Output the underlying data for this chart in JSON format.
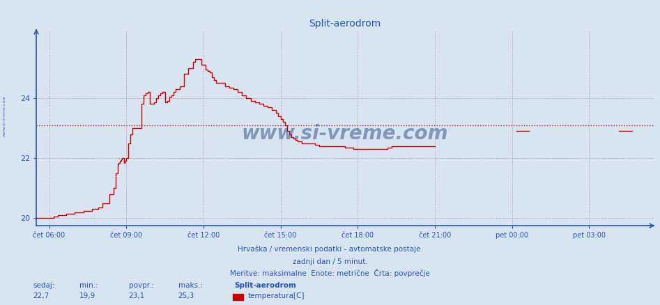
{
  "title": "Split-aerodrom",
  "title_color": "#2255bb",
  "title_fontsize": 10,
  "bg_color": "#d8e4f0",
  "plot_bg_color": "#d8e4f0",
  "line_color": "#cc0000",
  "avg_line_color": "#aa0000",
  "avg_value": 23.1,
  "ylim": [
    19.75,
    26.25
  ],
  "yticks": [
    20,
    22,
    24
  ],
  "axis_color": "#2255bb",
  "grid_color": "#bb7777",
  "footer_color": "#2255bb",
  "sedaj": "22,7",
  "min_val": "19,9",
  "povpr": "23,1",
  "maks": "25,3",
  "station_name": "Split-aerodrom",
  "series_label": "temperatura[C]",
  "footer_line1": "Hrvaška / vremenski podatki - avtomatske postaje.",
  "footer_line2": "zadnji dan / 5 minut.",
  "footer_line3": "Meritve: maksimalne  Enote: metrične  Črta: povprečje",
  "xticklabels": [
    "čet 06:00",
    "čet 09:00",
    "čet 12:00",
    "čet 15:00",
    "čet 18:00",
    "čet 21:00",
    "pet 00:00",
    "pet 03:00"
  ],
  "xtick_minutes": [
    0,
    180,
    360,
    540,
    720,
    900,
    1080,
    1260
  ],
  "xlim": [
    -30,
    1410
  ],
  "steps": [
    [
      -30,
      20.0
    ],
    [
      0,
      20.0
    ],
    [
      10,
      20.05
    ],
    [
      20,
      20.1
    ],
    [
      40,
      20.15
    ],
    [
      60,
      20.2
    ],
    [
      80,
      20.25
    ],
    [
      100,
      20.3
    ],
    [
      115,
      20.35
    ],
    [
      125,
      20.5
    ],
    [
      140,
      20.8
    ],
    [
      150,
      21.0
    ],
    [
      155,
      21.5
    ],
    [
      160,
      21.8
    ],
    [
      162,
      21.85
    ],
    [
      165,
      21.9
    ],
    [
      168,
      21.95
    ],
    [
      170,
      22.0
    ],
    [
      175,
      21.85
    ],
    [
      177,
      21.9
    ],
    [
      180,
      22.0
    ],
    [
      185,
      22.5
    ],
    [
      190,
      22.8
    ],
    [
      195,
      23.0
    ],
    [
      200,
      23.0
    ],
    [
      210,
      23.0
    ],
    [
      215,
      23.8
    ],
    [
      220,
      24.1
    ],
    [
      225,
      24.15
    ],
    [
      230,
      24.2
    ],
    [
      235,
      23.8
    ],
    [
      240,
      23.8
    ],
    [
      245,
      23.85
    ],
    [
      250,
      24.0
    ],
    [
      255,
      24.1
    ],
    [
      260,
      24.15
    ],
    [
      265,
      24.2
    ],
    [
      270,
      23.85
    ],
    [
      275,
      23.9
    ],
    [
      280,
      24.05
    ],
    [
      285,
      24.1
    ],
    [
      290,
      24.2
    ],
    [
      295,
      24.3
    ],
    [
      300,
      24.3
    ],
    [
      305,
      24.4
    ],
    [
      315,
      24.8
    ],
    [
      325,
      25.0
    ],
    [
      335,
      25.2
    ],
    [
      340,
      25.3
    ],
    [
      350,
      25.3
    ],
    [
      355,
      25.1
    ],
    [
      360,
      25.1
    ],
    [
      365,
      24.95
    ],
    [
      370,
      24.9
    ],
    [
      375,
      24.85
    ],
    [
      380,
      24.7
    ],
    [
      385,
      24.6
    ],
    [
      390,
      24.5
    ],
    [
      400,
      24.5
    ],
    [
      410,
      24.4
    ],
    [
      420,
      24.35
    ],
    [
      430,
      24.3
    ],
    [
      440,
      24.2
    ],
    [
      450,
      24.1
    ],
    [
      460,
      24.0
    ],
    [
      470,
      23.9
    ],
    [
      480,
      23.85
    ],
    [
      490,
      23.8
    ],
    [
      500,
      23.75
    ],
    [
      510,
      23.7
    ],
    [
      520,
      23.6
    ],
    [
      530,
      23.5
    ],
    [
      535,
      23.4
    ],
    [
      540,
      23.3
    ],
    [
      545,
      23.2
    ],
    [
      550,
      23.1
    ],
    [
      555,
      22.9
    ],
    [
      560,
      22.8
    ],
    [
      565,
      22.7
    ],
    [
      570,
      22.65
    ],
    [
      575,
      22.6
    ],
    [
      580,
      22.55
    ],
    [
      590,
      22.5
    ],
    [
      600,
      22.5
    ],
    [
      610,
      22.5
    ],
    [
      620,
      22.45
    ],
    [
      630,
      22.4
    ],
    [
      640,
      22.4
    ],
    [
      650,
      22.4
    ],
    [
      660,
      22.4
    ],
    [
      670,
      22.4
    ],
    [
      680,
      22.4
    ],
    [
      690,
      22.35
    ],
    [
      700,
      22.35
    ],
    [
      710,
      22.3
    ],
    [
      720,
      22.3
    ],
    [
      730,
      22.3
    ],
    [
      740,
      22.3
    ],
    [
      750,
      22.3
    ],
    [
      760,
      22.3
    ],
    [
      770,
      22.3
    ],
    [
      780,
      22.3
    ],
    [
      790,
      22.35
    ],
    [
      800,
      22.4
    ],
    [
      810,
      22.4
    ],
    [
      820,
      22.4
    ],
    [
      830,
      22.4
    ],
    [
      840,
      22.4
    ],
    [
      850,
      22.4
    ],
    [
      860,
      22.4
    ],
    [
      870,
      22.4
    ],
    [
      880,
      22.4
    ],
    [
      890,
      22.4
    ],
    [
      900,
      22.4
    ]
  ],
  "isolated1_x": 1090,
  "isolated1_y": 22.9,
  "isolated2_x": 1330,
  "isolated2_y": 22.9
}
